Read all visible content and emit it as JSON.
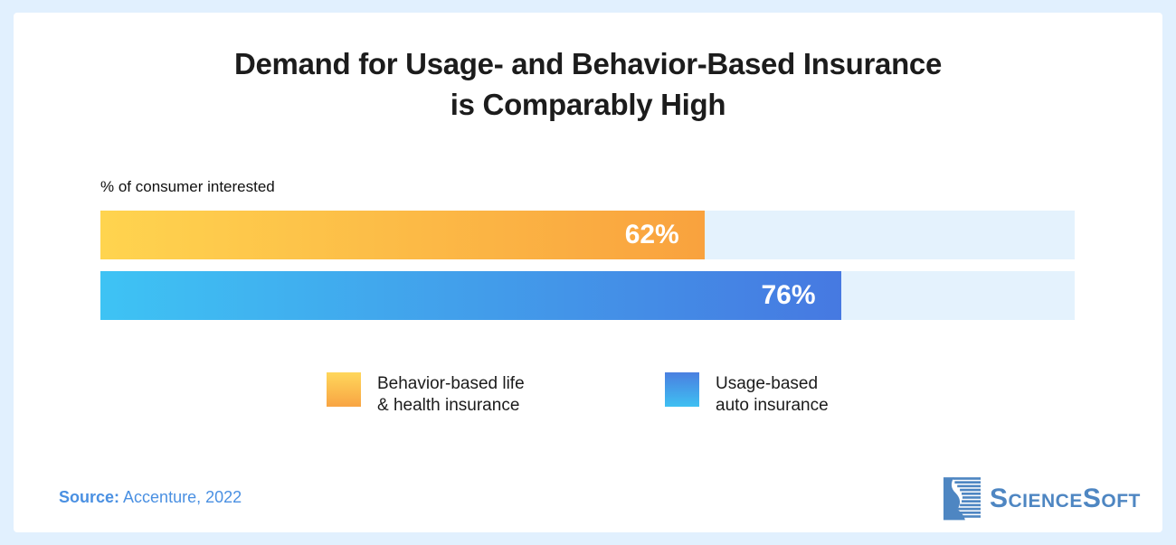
{
  "header": {
    "title_line1": "Demand for Usage- and Behavior-Based Insurance",
    "title_line2": "is Comparably High"
  },
  "chart_data": {
    "type": "bar",
    "orientation": "horizontal",
    "title": "Demand for Usage- and Behavior-Based Insurance is Comparably High",
    "axis_label": "% of consumer interested",
    "categories": [
      "Behavior-based life & health insurance",
      "Usage-based auto insurance"
    ],
    "values": [
      62,
      76
    ],
    "value_labels": [
      "62%",
      "76%"
    ],
    "xlim": [
      0,
      100
    ],
    "grid": false,
    "legend_position": "bottom",
    "track_color": "#e4f2fd",
    "bar_gradients": [
      [
        "#ffd44f",
        "#f9a23e"
      ],
      [
        "#3ec3f4",
        "#4679e1"
      ]
    ]
  },
  "legend": {
    "items": [
      {
        "label_line1": "Behavior-based life",
        "label_line2": "& health insurance",
        "swatch_gradient": [
          "#ffd75b",
          "#f8a443"
        ]
      },
      {
        "label_line1": "Usage-based",
        "label_line2": "auto insurance",
        "swatch_gradient": [
          "#4a7fe0",
          "#3fc0f2"
        ]
      }
    ]
  },
  "footer": {
    "source_label": "Source:",
    "source_value": " Accenture, 2022",
    "source_color": "#4a90e2",
    "logo_text": "ScienceSoft",
    "logo_color": "#4e86c2"
  }
}
